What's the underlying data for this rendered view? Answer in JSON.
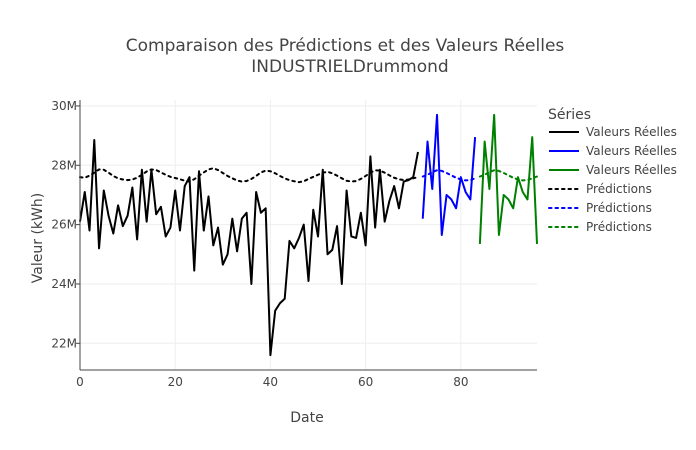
{
  "chart_data": {
    "type": "line",
    "title": "Comparaison des Prédictions et des Valeurs Réelles",
    "subtitle": "INDUSTRIELDrummond",
    "xlabel": "Date",
    "ylabel": "Valeur (kWh)",
    "xlim": [
      0,
      96
    ],
    "ylim": [
      21100000,
      30200000
    ],
    "x_ticks": [
      0,
      20,
      40,
      60,
      80
    ],
    "y_ticks": [
      22000000,
      24000000,
      26000000,
      28000000,
      30000000
    ],
    "y_tick_labels": [
      "22M",
      "24M",
      "26M",
      "28M",
      "30M"
    ],
    "grid": true,
    "legend": {
      "title": "Séries",
      "position": "right"
    },
    "series": [
      {
        "name": "Valeurs Réelles",
        "color": "#000000",
        "dash": "solid",
        "x_start": 0,
        "values": [
          26100000,
          27100000,
          25800000,
          28850000,
          25200000,
          27150000,
          26300000,
          25700000,
          26650000,
          25950000,
          26300000,
          27250000,
          25500000,
          27850000,
          26100000,
          27850000,
          26350000,
          26600000,
          25600000,
          25900000,
          27150000,
          25800000,
          27300000,
          27600000,
          24450000,
          27800000,
          25800000,
          26950000,
          25300000,
          25900000,
          24650000,
          25000000,
          26200000,
          25100000,
          26200000,
          26400000,
          24000000,
          27100000,
          26400000,
          26550000,
          21600000,
          23100000,
          23350000,
          23500000,
          25450000,
          25200000,
          25550000,
          26000000,
          24100000,
          26500000,
          25600000,
          27850000,
          25000000,
          25150000,
          25950000,
          24000000,
          27150000,
          25600000,
          25550000,
          26400000,
          25300000,
          28300000,
          25900000,
          27850000,
          26100000,
          26800000,
          27300000,
          26550000,
          27450000,
          27500000,
          27600000,
          28450000
        ]
      },
      {
        "name": "Valeurs Réelles",
        "color": "#0000ff",
        "dash": "solid",
        "x_start": 72,
        "values": [
          26200000,
          28800000,
          27200000,
          29700000,
          25650000,
          27000000,
          26850000,
          26550000,
          27600000,
          27100000,
          26850000,
          28950000
        ]
      },
      {
        "name": "Valeurs Réelles",
        "color": "#008000",
        "dash": "solid",
        "x_start": 84,
        "values": [
          25350000,
          28800000,
          27200000,
          29700000,
          25650000,
          27000000,
          26850000,
          26550000,
          27600000,
          27100000,
          26850000,
          28950000,
          25350000
        ]
      },
      {
        "name": "Prédictions",
        "color": "#000000",
        "dash": "dot",
        "x_start": 0,
        "values": [
          27600000,
          27580000,
          27650000,
          27750000,
          27860000,
          27850000,
          27750000,
          27640000,
          27560000,
          27520000,
          27500000,
          27520000,
          27580000,
          27680000,
          27790000,
          27860000,
          27840000,
          27760000,
          27680000,
          27610000,
          27570000,
          27530000,
          27480000,
          27450000,
          27530000,
          27650000,
          27760000,
          27860000,
          27900000,
          27840000,
          27740000,
          27640000,
          27560000,
          27490000,
          27450000,
          27470000,
          27540000,
          27640000,
          27760000,
          27820000,
          27800000,
          27730000,
          27640000,
          27560000,
          27500000,
          27460000,
          27430000,
          27460000,
          27540000,
          27610000,
          27680000,
          27750000,
          27780000,
          27730000,
          27650000,
          27560000,
          27480000,
          27450000,
          27470000,
          27540000,
          27640000,
          27750000,
          27830000,
          27820000,
          27750000,
          27660000,
          27580000,
          27530000,
          27500000,
          27520000,
          27560000,
          27600000
        ]
      },
      {
        "name": "Prédictions",
        "color": "#0000ff",
        "dash": "dot",
        "x_start": 72,
        "values": [
          27620000,
          27680000,
          27770000,
          27830000,
          27810000,
          27740000,
          27660000,
          27580000,
          27520000,
          27490000,
          27500000,
          27560000
        ]
      },
      {
        "name": "Prédictions",
        "color": "#008000",
        "dash": "dot",
        "x_start": 84,
        "values": [
          27620000,
          27680000,
          27770000,
          27830000,
          27810000,
          27740000,
          27660000,
          27580000,
          27520000,
          27490000,
          27500000,
          27560000,
          27620000
        ]
      }
    ]
  }
}
